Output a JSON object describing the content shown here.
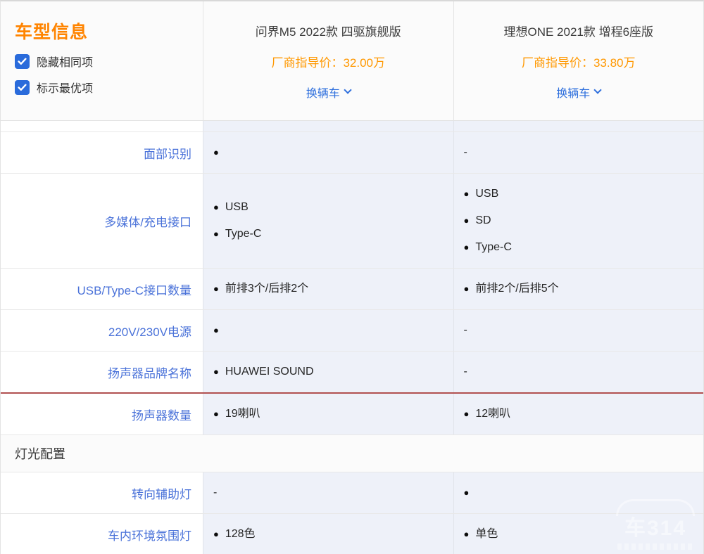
{
  "panel": {
    "title": "车型信息",
    "checkboxes": [
      {
        "label": "隐藏相同项",
        "checked": true
      },
      {
        "label": "标示最优项",
        "checked": true
      }
    ]
  },
  "cars": [
    {
      "name": "问界M5 2022款 四驱旗舰版",
      "price_label": "厂商指导价：",
      "price": "32.00万",
      "change_label": "换辆车"
    },
    {
      "name": "理想ONE 2021款 增程6座版",
      "price_label": "厂商指导价：",
      "price": "33.80万",
      "change_label": "换辆车"
    }
  ],
  "rows": [
    {
      "type": "spacer"
    },
    {
      "type": "data",
      "label": "面部识别",
      "cells": [
        [
          {
            "bullet": true,
            "text": ""
          }
        ],
        [
          {
            "bullet": false,
            "text": "-"
          }
        ]
      ]
    },
    {
      "type": "data",
      "label": "多媒体/充电接口",
      "cells": [
        [
          {
            "bullet": true,
            "text": "USB"
          },
          {
            "bullet": true,
            "text": "Type-C"
          }
        ],
        [
          {
            "bullet": true,
            "text": "USB"
          },
          {
            "bullet": true,
            "text": "SD"
          },
          {
            "bullet": true,
            "text": "Type-C"
          }
        ]
      ]
    },
    {
      "type": "data",
      "label": "USB/Type-C接口数量",
      "cells": [
        [
          {
            "bullet": true,
            "text": "前排3个/后排2个"
          }
        ],
        [
          {
            "bullet": true,
            "text": "前排2个/后排5个"
          }
        ]
      ]
    },
    {
      "type": "data",
      "label": "220V/230V电源",
      "cells": [
        [
          {
            "bullet": true,
            "text": ""
          }
        ],
        [
          {
            "bullet": false,
            "text": "-"
          }
        ]
      ]
    },
    {
      "type": "data",
      "label": "扬声器品牌名称",
      "cells": [
        [
          {
            "bullet": true,
            "text": "HUAWEI SOUND"
          }
        ],
        [
          {
            "bullet": false,
            "text": "-"
          }
        ]
      ]
    },
    {
      "type": "data",
      "label": "扬声器数量",
      "red_divider": true,
      "cells": [
        [
          {
            "bullet": true,
            "text": "19喇叭"
          }
        ],
        [
          {
            "bullet": true,
            "text": "12喇叭"
          }
        ]
      ]
    },
    {
      "type": "section",
      "label": "灯光配置"
    },
    {
      "type": "data",
      "label": "转向辅助灯",
      "cells": [
        [
          {
            "bullet": false,
            "text": "-"
          }
        ],
        [
          {
            "bullet": true,
            "text": ""
          }
        ]
      ]
    },
    {
      "type": "data",
      "label": "车内环境氛围灯",
      "cells": [
        [
          {
            "bullet": true,
            "text": "128色"
          }
        ],
        [
          {
            "bullet": true,
            "text": "单色"
          }
        ]
      ]
    }
  ],
  "icons": {
    "bullet": "●",
    "check": "checkmark-icon",
    "chevron": "chevron-down-icon"
  },
  "watermark": {
    "text": "车314"
  },
  "colors": {
    "orange_title": "#ff8400",
    "orange_price": "#ff9800",
    "blue_link": "#2e6fdd",
    "blue_label": "#4a72d9",
    "blue_checkbox": "#2a6bdb",
    "cell_bg": "#eef1f9",
    "red_divider": "#b15050"
  }
}
